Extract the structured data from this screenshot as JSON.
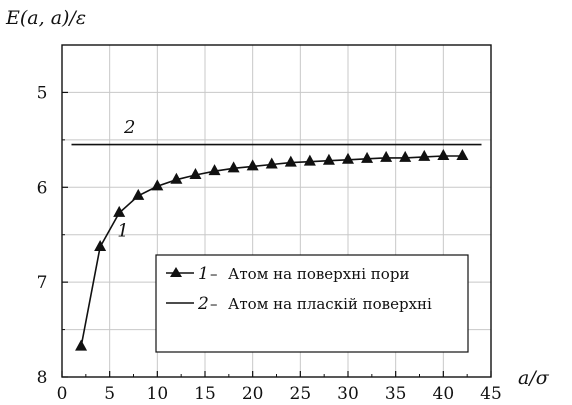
{
  "chart_data": {
    "type": "line",
    "ylabel": "E(a, a)/ε",
    "xlabel": "a/σ",
    "xlim": [
      0,
      45
    ],
    "ylim": [
      8,
      4.5
    ],
    "y_axis_inverted": true,
    "grid": true,
    "legend_placement": "lower-right",
    "x_ticks": [
      "0",
      "5",
      "10",
      "15",
      "20",
      "25",
      "30",
      "35",
      "40",
      "45"
    ],
    "y_ticks": [
      "5",
      "6",
      "7",
      "8"
    ],
    "series": [
      {
        "name": "Атом на поверхні пори",
        "number": "1",
        "marker": "triangle",
        "x": [
          2,
          4,
          6,
          8,
          10,
          12,
          14,
          16,
          18,
          20,
          22,
          24,
          26,
          28,
          30,
          32,
          34,
          36,
          38,
          40,
          42
        ],
        "y": [
          7.68,
          6.63,
          6.27,
          6.09,
          5.99,
          5.92,
          5.87,
          5.83,
          5.8,
          5.78,
          5.76,
          5.74,
          5.73,
          5.72,
          5.71,
          5.7,
          5.69,
          5.69,
          5.68,
          5.67,
          5.67
        ]
      },
      {
        "name": "Атом на пласкій поверхні",
        "number": "2",
        "marker": "none",
        "x": [
          1,
          44
        ],
        "y": [
          5.55,
          5.55
        ]
      }
    ],
    "annotations": [
      {
        "text": "1",
        "x": 5.8,
        "y": 6.52
      },
      {
        "text": "2",
        "x": 6.5,
        "y": 5.43
      }
    ],
    "legend": {
      "dash": "–",
      "items": [
        {
          "number": "1",
          "label": "Атом на поверхні пори"
        },
        {
          "number": "2",
          "label": "Атом на пласкій поверхні"
        }
      ]
    }
  }
}
